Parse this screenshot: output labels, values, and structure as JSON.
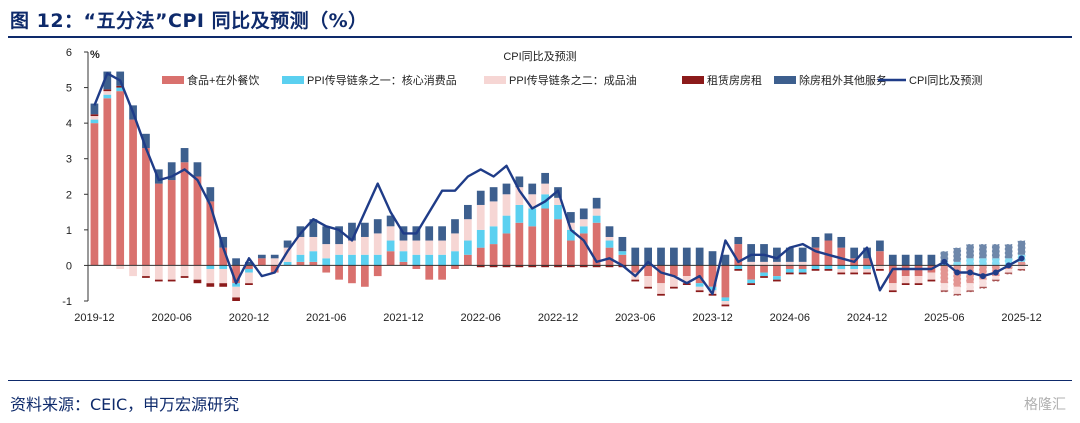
{
  "figure": {
    "title": "图 12：“五分法”CPI 同比及预测（%）",
    "source": "资料来源：CEIC，申万宏源研究",
    "watermark": "格隆汇"
  },
  "chart_data": {
    "type": "bar",
    "title": "CPI同比及预测",
    "ylabel": "%",
    "ylim": [
      -1,
      6
    ],
    "yticks": [
      -1,
      0,
      1,
      2,
      3,
      4,
      5,
      6
    ],
    "xtick_labels": [
      "2019-12",
      "2020-06",
      "2020-12",
      "2021-06",
      "2021-12",
      "2022-06",
      "2022-12",
      "2023-06",
      "2023-12",
      "2024-06",
      "2024-12",
      "2025-06",
      "2025-12"
    ],
    "xtick_index": [
      0,
      6,
      12,
      18,
      24,
      30,
      36,
      42,
      48,
      54,
      60,
      66,
      72
    ],
    "legend_position": "top",
    "stacked": true,
    "forecast_start_index": 66,
    "series": [
      {
        "name": "食品+在外餐饮",
        "color": "#d9716e",
        "values": [
          4.0,
          4.7,
          4.9,
          4.1,
          3.3,
          2.3,
          2.4,
          2.9,
          2.5,
          1.8,
          0.5,
          -0.5,
          -0.1,
          0.2,
          -0.2,
          0.0,
          0.1,
          0.1,
          -0.2,
          -0.4,
          -0.5,
          -0.6,
          -0.3,
          0.4,
          0.1,
          -0.1,
          -0.4,
          -0.4,
          -0.1,
          0.3,
          0.5,
          0.6,
          0.9,
          1.2,
          1.1,
          1.6,
          1.3,
          0.7,
          0.9,
          1.2,
          0.5,
          0.3,
          -0.2,
          -0.3,
          -0.5,
          -0.3,
          -0.3,
          -0.5,
          -0.6,
          -0.9,
          0.6,
          -0.4,
          -0.2,
          -0.3,
          -0.1,
          -0.1,
          0.5,
          0.7,
          0.5,
          0.2,
          0.2,
          0.4,
          -0.5,
          -0.3,
          -0.3,
          -0.2,
          -0.5,
          -0.6,
          -0.5,
          -0.4,
          -0.3,
          -0.1,
          0.1
        ]
      },
      {
        "name": "PPI传导链条之一：核心消费品",
        "color": "#5bd0f0",
        "values": [
          0.1,
          0.1,
          0.1,
          0.0,
          0.0,
          0.0,
          0.0,
          0.0,
          0.0,
          -0.1,
          -0.1,
          -0.1,
          -0.1,
          0.0,
          0.0,
          0.1,
          0.2,
          0.3,
          0.2,
          0.3,
          0.3,
          0.3,
          0.3,
          0.3,
          0.3,
          0.3,
          0.3,
          0.3,
          0.4,
          0.4,
          0.5,
          0.5,
          0.5,
          0.5,
          0.5,
          0.4,
          0.4,
          0.3,
          0.2,
          0.2,
          0.2,
          0.1,
          0.0,
          0.0,
          0.0,
          0.0,
          0.0,
          -0.1,
          -0.1,
          -0.1,
          -0.1,
          -0.1,
          -0.1,
          -0.1,
          -0.1,
          -0.1,
          -0.1,
          -0.1,
          -0.1,
          -0.1,
          -0.1,
          0.0,
          0.0,
          0.0,
          0.0,
          0.0,
          0.1,
          0.1,
          0.2,
          0.2,
          0.2,
          0.2,
          0.2
        ]
      },
      {
        "name": "PPI传导链条之二：成品油",
        "color": "#f6d6d4",
        "values": [
          0.1,
          0.1,
          -0.1,
          -0.3,
          -0.3,
          -0.4,
          -0.4,
          -0.3,
          -0.4,
          -0.4,
          -0.4,
          -0.3,
          -0.3,
          0.0,
          0.2,
          0.4,
          0.5,
          0.4,
          0.4,
          0.3,
          0.4,
          0.5,
          0.6,
          0.4,
          0.3,
          0.4,
          0.4,
          0.4,
          0.5,
          0.6,
          0.7,
          0.7,
          0.6,
          0.5,
          0.4,
          0.3,
          0.2,
          0.2,
          0.2,
          0.2,
          0.1,
          0.0,
          -0.2,
          -0.3,
          -0.3,
          -0.3,
          -0.2,
          -0.1,
          -0.1,
          -0.1,
          0.0,
          0.1,
          0.1,
          0.1,
          0.1,
          0.1,
          0.0,
          0.0,
          -0.1,
          -0.1,
          -0.1,
          -0.1,
          -0.2,
          -0.2,
          -0.2,
          -0.2,
          -0.2,
          -0.2,
          -0.2,
          -0.2,
          -0.1,
          -0.1,
          -0.1
        ]
      },
      {
        "name": "租赁房房租",
        "color": "#8b1a1a",
        "values": [
          0.05,
          0.05,
          0.05,
          0.0,
          -0.05,
          -0.05,
          -0.05,
          -0.05,
          -0.1,
          -0.1,
          -0.1,
          -0.1,
          -0.05,
          0.0,
          0.0,
          0.0,
          0.0,
          0.0,
          0.0,
          0.0,
          0.0,
          0.0,
          0.0,
          0.0,
          0.0,
          0.0,
          0.0,
          0.0,
          0.0,
          0.0,
          -0.05,
          -0.05,
          -0.05,
          -0.05,
          -0.05,
          -0.05,
          -0.05,
          -0.05,
          -0.05,
          -0.05,
          -0.05,
          -0.05,
          -0.05,
          -0.05,
          -0.05,
          -0.05,
          -0.05,
          -0.05,
          -0.05,
          -0.05,
          -0.05,
          -0.05,
          -0.05,
          -0.05,
          -0.05,
          -0.05,
          -0.05,
          -0.05,
          -0.05,
          -0.05,
          -0.05,
          -0.05,
          -0.05,
          -0.05,
          -0.05,
          -0.05,
          -0.05,
          -0.05,
          -0.05,
          -0.05,
          -0.05,
          -0.05,
          -0.05
        ]
      },
      {
        "name": "除房租外其他服务",
        "color": "#3d5f8e",
        "values": [
          0.3,
          0.5,
          0.4,
          0.4,
          0.4,
          0.4,
          0.5,
          0.4,
          0.4,
          0.4,
          0.3,
          0.2,
          0.1,
          0.1,
          0.1,
          0.2,
          0.3,
          0.5,
          0.5,
          0.5,
          0.5,
          0.4,
          0.4,
          0.3,
          0.4,
          0.4,
          0.4,
          0.4,
          0.4,
          0.4,
          0.4,
          0.4,
          0.3,
          0.3,
          0.3,
          0.3,
          0.3,
          0.3,
          0.3,
          0.3,
          0.3,
          0.4,
          0.5,
          0.5,
          0.5,
          0.5,
          0.5,
          0.5,
          0.4,
          0.3,
          0.2,
          0.5,
          0.5,
          0.4,
          0.4,
          0.4,
          0.3,
          0.2,
          0.3,
          0.3,
          0.3,
          0.3,
          0.3,
          0.3,
          0.3,
          0.3,
          0.3,
          0.4,
          0.4,
          0.4,
          0.4,
          0.4,
          0.4
        ]
      },
      {
        "name": "CPI同比及预测",
        "type": "line",
        "color": "#1f3c88",
        "values": [
          4.5,
          5.4,
          5.2,
          4.3,
          3.3,
          2.4,
          2.5,
          2.7,
          2.4,
          1.7,
          0.5,
          -0.5,
          0.2,
          -0.3,
          -0.2,
          0.4,
          0.9,
          1.3,
          1.1,
          1.0,
          0.7,
          1.5,
          2.3,
          1.5,
          0.9,
          0.9,
          1.5,
          2.1,
          2.1,
          2.5,
          2.7,
          2.5,
          2.8,
          2.1,
          1.6,
          1.8,
          2.1,
          1.0,
          0.7,
          0.1,
          0.2,
          0.0,
          -0.3,
          0.1,
          -0.2,
          -0.3,
          -0.5,
          -0.3,
          -0.8,
          0.7,
          0.1,
          0.3,
          0.3,
          0.2,
          0.5,
          0.6,
          0.4,
          0.3,
          0.2,
          0.1,
          0.5,
          -0.7,
          -0.1,
          -0.1,
          -0.1,
          -0.1,
          0.1,
          -0.2,
          -0.2,
          -0.3,
          -0.2,
          0.0,
          0.2
        ]
      }
    ]
  }
}
